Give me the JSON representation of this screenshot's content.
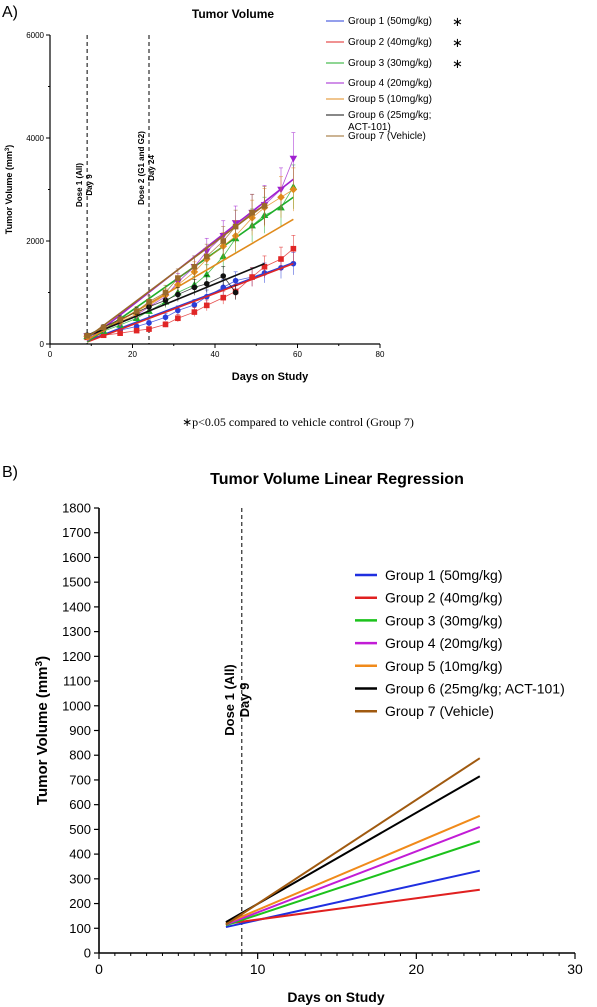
{
  "panel_a_label": "A)",
  "panel_b_label": "B)",
  "footnote": "∗p<0.05 compared to vehicle control (Group 7)",
  "chart_data": [
    {
      "type": "scatter",
      "title": "Tumor Volume",
      "xlabel": "Days on Study",
      "ylabel": "Tumor Volume (mm",
      "ylabel_sup": "3",
      "ylabel_end": ")",
      "xlim": [
        0,
        80
      ],
      "ylim": [
        0,
        6000
      ],
      "xticks": [
        "0",
        "20",
        "40",
        "60",
        "80"
      ],
      "yticks": [
        "0",
        "2000",
        "4000",
        "6000"
      ],
      "grid": false,
      "legend_position": "top-right",
      "annotations": [
        {
          "x": 9,
          "text": "Dose 1 (All)",
          "text2": "Day 9"
        },
        {
          "x": 24,
          "text": "Dose 2 (G1 and G2)",
          "text2": "Day 24"
        }
      ],
      "x": [
        9,
        13,
        17,
        21,
        24,
        28,
        31,
        35,
        38,
        42,
        45,
        49,
        52,
        56,
        59
      ],
      "series": [
        {
          "name": "Group 1 (50mg/kg)",
          "star": "∗",
          "color": "#2a3fd8",
          "marker": "circle",
          "values": [
            140,
            200,
            270,
            340,
            410,
            520,
            650,
            760,
            920,
            1100,
            1230,
            1300,
            1380,
            1480,
            1560
          ],
          "fit": [
            [
              9,
              60
            ],
            [
              59,
              1580
            ]
          ]
        },
        {
          "name": "Group 2 (40mg/kg)",
          "star": "∗",
          "color": "#e02626",
          "marker": "square",
          "values": [
            130,
            170,
            210,
            260,
            290,
            380,
            500,
            620,
            750,
            900,
            1020,
            1300,
            1500,
            1650,
            1850
          ],
          "fit": [
            [
              9,
              40
            ],
            [
              59,
              1560
            ]
          ]
        },
        {
          "name": "Group 3 (30mg/kg)",
          "star": "∗",
          "color": "#1fae2a",
          "marker": "triangle-up",
          "values": [
            150,
            250,
            370,
            500,
            640,
            820,
            1000,
            1150,
            1350,
            1700,
            2050,
            2300,
            2500,
            2650,
            3050
          ],
          "fit": [
            [
              9,
              40
            ],
            [
              59,
              2850
            ]
          ]
        },
        {
          "name": "Group 4 (20mg/kg)",
          "star": "",
          "color": "#a020d0",
          "marker": "triangle-down",
          "values": [
            155,
            280,
            400,
            560,
            720,
            920,
            1200,
            1500,
            1800,
            2100,
            2350,
            2550,
            2700,
            3000,
            3600
          ],
          "fit": [
            [
              9,
              60
            ],
            [
              59,
              3200
            ]
          ]
        },
        {
          "name": "Group 5 (10mg/kg)",
          "star": "",
          "color": "#e08b1c",
          "marker": "diamond",
          "values": [
            150,
            300,
            430,
            580,
            750,
            950,
            1150,
            1400,
            1650,
            1900,
            2100,
            2450,
            2650,
            2850,
            3000
          ],
          "fit": [
            [
              9,
              80
            ],
            [
              59,
              2420
            ]
          ]
        },
        {
          "name": "Group 6 (25mg/kg; ACT-101)",
          "star": "",
          "color": "#111111",
          "marker": "circle",
          "values": [
            170,
            330,
            480,
            620,
            720,
            850,
            960,
            1100,
            1170,
            1320,
            1000
          ],
          "x": [
            9,
            13,
            17,
            21,
            24,
            28,
            31,
            35,
            38,
            42,
            45
          ],
          "fit": [
            [
              9,
              150
            ],
            [
              52,
              1560
            ]
          ]
        },
        {
          "name": "Group 7 (Vehicle)",
          "star": "",
          "color": "#9a6a2a",
          "marker": "square",
          "values": [
            160,
            320,
            470,
            640,
            820,
            1000,
            1280,
            1500,
            1700,
            2000,
            2280,
            2550,
            2680
          ],
          "x": [
            9,
            13,
            17,
            21,
            24,
            28,
            31,
            35,
            38,
            42,
            45,
            49,
            52
          ],
          "fit": [
            [
              9,
              120
            ],
            [
              52,
              2700
            ]
          ]
        }
      ]
    },
    {
      "type": "line",
      "title": "Tumor Volume Linear Regression",
      "xlabel": "Days on Study",
      "ylabel": "Tumor Volume (mm",
      "ylabel_sup": "3",
      "ylabel_end": ")",
      "xlim": [
        0,
        30
      ],
      "ylim": [
        0,
        1800
      ],
      "xticks": [
        "0",
        "10",
        "20",
        "30"
      ],
      "yticks": [
        "0",
        "100",
        "200",
        "300",
        "400",
        "500",
        "600",
        "700",
        "800",
        "900",
        "1000",
        "1100",
        "1200",
        "1300",
        "1400",
        "1500",
        "1600",
        "1700",
        "1800"
      ],
      "grid": false,
      "legend_position": "right",
      "annotations": [
        {
          "x": 9,
          "text": "Dose 1 (All)",
          "text2": "Day 9"
        }
      ],
      "series": [
        {
          "name": "Group 1 (50mg/kg)",
          "color": "#1f2fe0",
          "x": [
            8,
            24
          ],
          "values": [
            105,
            333
          ]
        },
        {
          "name": "Group 2 (40mg/kg)",
          "color": "#e02020",
          "x": [
            8,
            24
          ],
          "values": [
            118,
            256
          ]
        },
        {
          "name": "Group 3 (30mg/kg)",
          "color": "#1cc21c",
          "x": [
            8,
            24
          ],
          "values": [
            112,
            452
          ]
        },
        {
          "name": "Group 4 (20mg/kg)",
          "color": "#c21cd6",
          "x": [
            8,
            24
          ],
          "values": [
            115,
            510
          ]
        },
        {
          "name": "Group 5 (10mg/kg)",
          "color": "#f08a1a",
          "x": [
            8,
            24
          ],
          "values": [
            120,
            555
          ]
        },
        {
          "name": "Group 6 (25mg/kg; ACT-101)",
          "color": "#000000",
          "x": [
            8,
            24
          ],
          "values": [
            125,
            715
          ]
        },
        {
          "name": "Group 7 (Vehicle)",
          "color": "#a05a10",
          "x": [
            8,
            24
          ],
          "values": [
            115,
            788
          ]
        }
      ]
    }
  ]
}
